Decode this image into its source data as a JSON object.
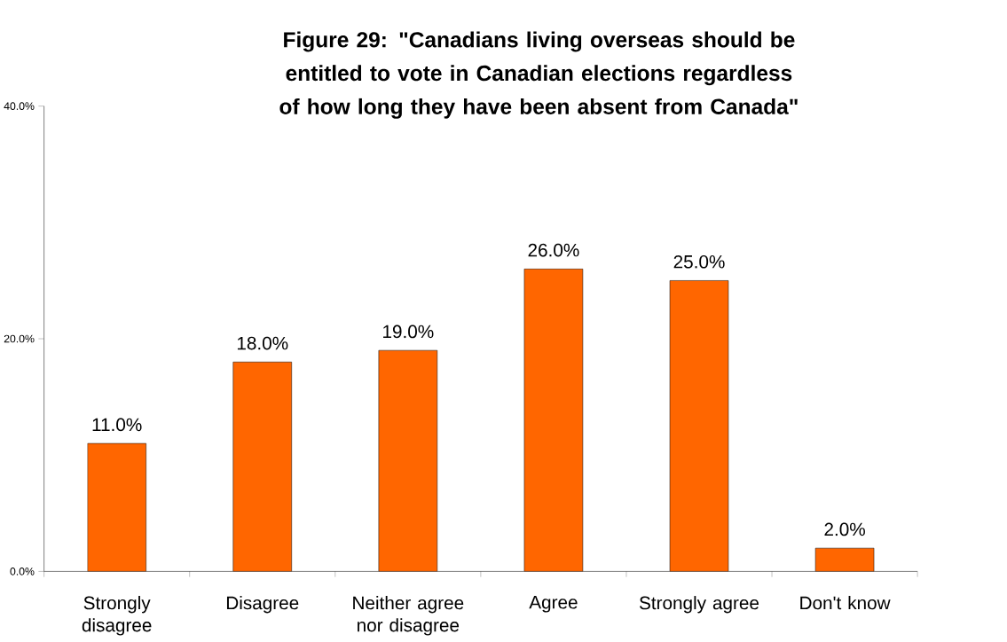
{
  "chart_data": {
    "type": "bar",
    "title": "Figure 29: \"Canadians living overseas should be entitled to vote in Canadian elections regardless of how long they have been absent from Canada\"",
    "categories": [
      "Strongly disagree",
      "Disagree",
      "Neither agree nor disagree",
      "Agree",
      "Strongly agree",
      "Don't know"
    ],
    "values": [
      11,
      18,
      19,
      26,
      25,
      2
    ],
    "value_labels": [
      "11.0%",
      "18.0%",
      "19.0%",
      "26.0%",
      "25.0%",
      "2.0%"
    ],
    "color": "#ff6600",
    "ylim": [
      0,
      40
    ],
    "yticks": [
      {
        "value": 0,
        "label": "0.0%"
      },
      {
        "value": 20,
        "label": "20.0%"
      },
      {
        "value": 40,
        "label": "40.0%"
      }
    ]
  }
}
